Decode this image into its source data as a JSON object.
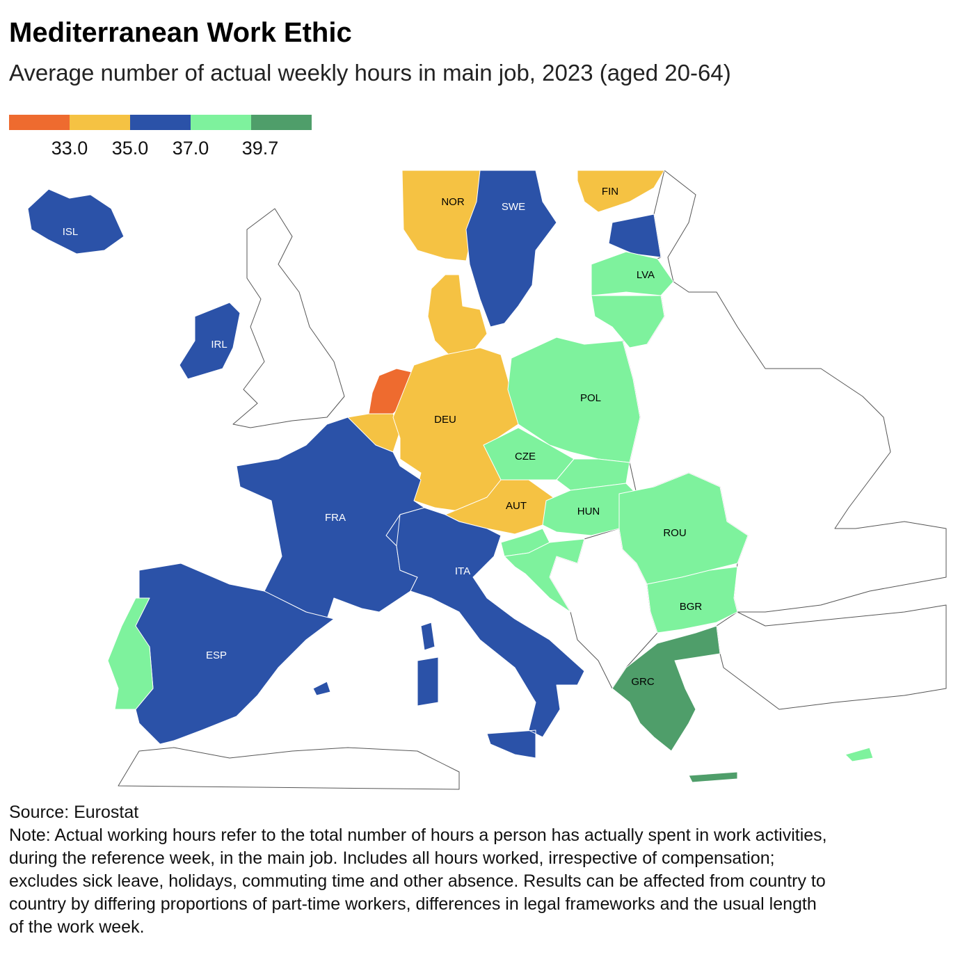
{
  "header": {
    "title": "Mediterranean Work Ethic",
    "subtitle": "Average number of actual weekly hours in main job, 2023 (aged 20-64)"
  },
  "legend": {
    "colors": [
      "#ee6b2f",
      "#f5c243",
      "#2b52a8",
      "#7ef29d",
      "#4f9e6a"
    ],
    "labels": [
      "33.0",
      "35.0",
      "37.0",
      "39.7"
    ]
  },
  "countries": [
    {
      "label": "ISL",
      "color": "#2b52a8"
    },
    {
      "label": "NOR",
      "color": "#f5c243"
    },
    {
      "label": "SWE",
      "color": "#2b52a8"
    },
    {
      "label": "FIN",
      "color": "#f5c243"
    },
    {
      "color": "#2b52a8"
    },
    {
      "label": "LVA",
      "color": "#7ef29d"
    },
    {
      "color": "#7ef29d"
    },
    {
      "label": "IRL",
      "color": "#2b52a8"
    },
    {
      "color": "#ee6b2f"
    },
    {
      "color": "#f5c243"
    },
    {
      "color": "#f5c243"
    },
    {
      "label": "DEU",
      "color": "#f5c243"
    },
    {
      "label": "POL",
      "color": "#7ef29d"
    },
    {
      "label": "CZE",
      "color": "#7ef29d"
    },
    {
      "color": "#7ef29d"
    },
    {
      "label": "AUT",
      "color": "#f5c243"
    },
    {
      "color": "#2b52a8"
    },
    {
      "label": "HUN",
      "color": "#7ef29d"
    },
    {
      "color": "#7ef29d"
    },
    {
      "color": "#7ef29d"
    },
    {
      "label": "ROU",
      "color": "#7ef29d"
    },
    {
      "label": "BGR",
      "color": "#7ef29d"
    },
    {
      "label": "GRC",
      "color": "#4f9e6a"
    },
    {
      "label": "FRA",
      "color": "#2b52a8"
    },
    {
      "label": "ITA",
      "color": "#2b52a8"
    },
    {
      "label": "ESP",
      "color": "#2b52a8"
    },
    {
      "color": "#7ef29d"
    },
    {
      "color": "#7ef29d"
    }
  ],
  "source": "Source: Eurostat",
  "note": [
    "Note: Actual working hours refer to the total number of hours a person has actually spent in work activities,",
    "during the reference week, in the main job. Includes all hours worked, irrespective of compensation;",
    "excludes sick leave, holidays, commuting time and other absence. Results can be affected from country to",
    "country by differing proportions of part-time workers, differences in legal frameworks and the usual length",
    "of the work week."
  ]
}
